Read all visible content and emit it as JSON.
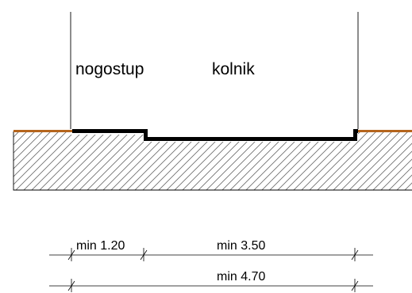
{
  "labels": {
    "sidewalk": "nogostup",
    "roadway": "kolnik"
  },
  "dimensions": {
    "sidewalk_width": "min 1.20",
    "roadway_width": "min 3.50",
    "total_width": "min 4.70"
  },
  "colors": {
    "ground_line": "#b5651d",
    "pavement": "#000000",
    "hatch": "#6b6b6b",
    "background": "#ffffff"
  }
}
